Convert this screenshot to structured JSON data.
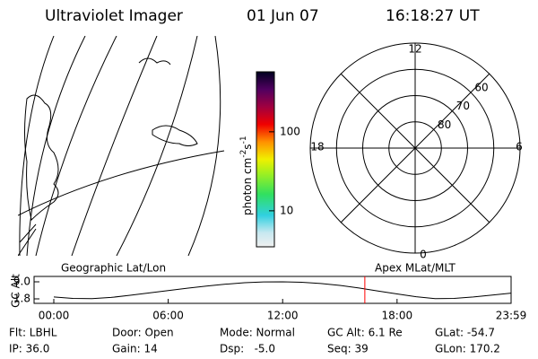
{
  "header": {
    "instrument": "Ultraviolet Imager",
    "date": "01 Jun 07",
    "time": "16:18:27 UT"
  },
  "colorbar": {
    "label": {
      "base": "photon cm",
      "exp1": "-2",
      "unit2": "s",
      "exp2": "-1"
    },
    "log": true,
    "range": [
      3.5,
      575
    ],
    "ticks": [
      10,
      100
    ]
  },
  "polar": {
    "lat_limit": 50,
    "rings": [
      60,
      70,
      80
    ],
    "ring_labels": [
      "60",
      "70",
      "80"
    ],
    "mlt_labels": {
      "top": "12",
      "left": "18",
      "right": "6",
      "bottom": "0"
    }
  },
  "panel_labels": {
    "left": "Geographic Lat/Lon",
    "right": "Apex MLat/MLT"
  },
  "chart_data": {
    "type": "line",
    "ylabel": "GC Alt",
    "ylim": [
      1.8,
      9.0
    ],
    "yticks": [
      {
        "value": 9.0,
        "label": "9.0"
      },
      {
        "value": 1.8,
        "label": "1.8"
      }
    ],
    "xlim": [
      0,
      23.98
    ],
    "xticks": [
      {
        "value": 0,
        "label": "00:00"
      },
      {
        "value": 6,
        "label": "06:00"
      },
      {
        "value": 12,
        "label": "12:00"
      },
      {
        "value": 18,
        "label": "18:00"
      },
      {
        "value": 23.98,
        "label": "23:59"
      }
    ],
    "x": [
      0,
      1,
      2,
      3,
      4,
      5,
      6,
      7,
      8,
      9,
      10,
      11,
      12,
      13,
      14,
      15,
      16,
      17,
      18,
      19,
      20,
      21,
      22,
      23,
      23.98
    ],
    "series": [
      {
        "color": "#000000",
        "values": [
          2.6,
          2.0,
          1.9,
          2.4,
          3.3,
          4.3,
          5.3,
          6.3,
          7.2,
          8.0,
          8.6,
          8.95,
          9.0,
          8.8,
          8.3,
          7.5,
          6.4,
          5.1,
          3.9,
          2.7,
          1.9,
          2.0,
          2.6,
          3.4,
          4.2
        ]
      }
    ],
    "marker_x": 16.31,
    "marker_color": "#ff0000"
  },
  "info": [
    [
      "Flt: LBHL",
      "IP: 36.0"
    ],
    [
      "Door: Open",
      "Gain: 14"
    ],
    [
      "Mode: Normal",
      "Dsp:   -5.0"
    ],
    [
      "GC Alt: 6.1 Re",
      "Seq: 39"
    ],
    [
      "GLat: -54.7",
      "GLon: 170.2"
    ]
  ]
}
